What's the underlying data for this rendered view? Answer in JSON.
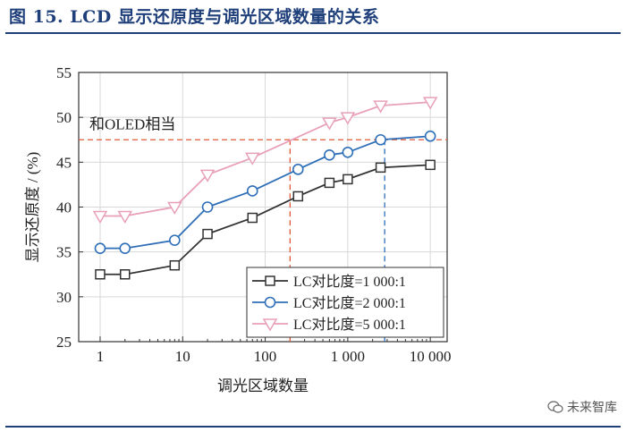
{
  "figure_title": "图 15. LCD 显示还原度与调光区域数量的关系",
  "watermark": "未来智库",
  "watermark_icon": "wechat-icon",
  "chart_data": {
    "type": "line",
    "xlabel": "调光区域数量",
    "ylabel": "显示还原度 / (%)",
    "xscale": "log",
    "xlim": [
      0.55,
      16000
    ],
    "ylim": [
      25,
      55
    ],
    "x_ticks": [
      1,
      10,
      100,
      1000,
      10000
    ],
    "x_tick_labels": [
      "1",
      "10",
      "100",
      "1 000",
      "10 000"
    ],
    "y_ticks": [
      25,
      30,
      35,
      40,
      45,
      50,
      55
    ],
    "grid": true,
    "legend": "bottom-right",
    "reference_line": {
      "label": "和OLED相当",
      "y": 47.5,
      "color": "#e05a3a"
    },
    "series": [
      {
        "name": "LC对比度=1 000:1",
        "marker": "square",
        "color": "#333333",
        "x": [
          1,
          2,
          8,
          20,
          70,
          250,
          600,
          1000,
          2500,
          10000
        ],
        "values": [
          32.5,
          32.5,
          33.5,
          37.0,
          38.8,
          41.2,
          42.7,
          43.1,
          44.4,
          44.7
        ]
      },
      {
        "name": "LC对比度=2 000:1",
        "marker": "circle",
        "color": "#2f6fb7",
        "x": [
          1,
          2,
          8,
          20,
          70,
          250,
          600,
          1000,
          2500,
          10000
        ],
        "values": [
          35.4,
          35.4,
          36.3,
          40.0,
          41.8,
          44.2,
          45.8,
          46.1,
          47.5,
          47.9
        ]
      },
      {
        "name": "LC对比度=5 000:1",
        "marker": "triangle-down",
        "color": "#e8a0b8",
        "x": [
          1,
          2,
          8,
          20,
          70,
          600,
          1000,
          2500,
          10000
        ],
        "values": [
          39.0,
          39.0,
          40.0,
          43.6,
          45.5,
          49.4,
          50.0,
          51.3,
          51.7
        ]
      }
    ],
    "crossings": [
      {
        "series": "LC对比度=5 000:1",
        "x": 200,
        "color": "#e05a3a"
      },
      {
        "series": "LC对比度=2 000:1",
        "x": 2800,
        "color": "#2f6fb7"
      }
    ]
  }
}
